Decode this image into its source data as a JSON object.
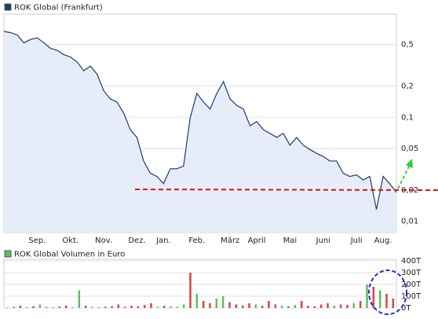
{
  "chart_data": [
    {
      "type": "line",
      "log_scale": true,
      "grid": true,
      "series": [
        {
          "name": "ROK Global (Frankfurt)",
          "color": "#1f3b6b",
          "fill": "#e6edf8",
          "values": [
            0.67,
            0.65,
            0.62,
            0.52,
            0.56,
            0.58,
            0.52,
            0.46,
            0.44,
            0.4,
            0.38,
            0.34,
            0.28,
            0.31,
            0.26,
            0.18,
            0.15,
            0.14,
            0.11,
            0.076,
            0.064,
            0.038,
            0.029,
            0.027,
            0.023,
            0.032,
            0.032,
            0.034,
            0.099,
            0.17,
            0.14,
            0.12,
            0.17,
            0.22,
            0.15,
            0.13,
            0.12,
            0.083,
            0.091,
            0.076,
            0.07,
            0.064,
            0.07,
            0.054,
            0.064,
            0.054,
            0.049,
            0.045,
            0.042,
            0.038,
            0.038,
            0.029,
            0.027,
            0.028,
            0.025,
            0.027,
            0.013,
            0.027,
            0.023,
            0.019
          ]
        }
      ],
      "categories": [
        null,
        null,
        null,
        null,
        null,
        "Sep.",
        null,
        null,
        null,
        null,
        "Okt.",
        null,
        null,
        null,
        null,
        "Nov.",
        null,
        null,
        null,
        null,
        "Dez.",
        null,
        null,
        null,
        "Jan.",
        null,
        null,
        null,
        null,
        "Feb.",
        null,
        null,
        null,
        null,
        "März",
        null,
        null,
        null,
        "April",
        null,
        null,
        null,
        null,
        "Mai",
        null,
        null,
        null,
        null,
        "Juni",
        null,
        null,
        null,
        null,
        "Juli",
        null,
        null,
        null,
        "Aug.",
        null,
        null
      ],
      "ylim": [
        0.0078,
        0.98
      ],
      "yticks": [
        {
          "value": 0.5,
          "label": "0,5"
        },
        {
          "value": 0.2,
          "label": "0,2"
        },
        {
          "value": 0.1,
          "label": "0,1"
        },
        {
          "value": 0.05,
          "label": "0,05"
        },
        {
          "value": 0.02,
          "label": "0,02"
        },
        {
          "value": 0.01,
          "label": "0,01"
        }
      ]
    },
    {
      "type": "bar",
      "grid": true,
      "series": [
        {
          "name": "ROK Global Volumen in Euro",
          "color": "#5cbf5c",
          "values": [
            5,
            10,
            20,
            8,
            15,
            30,
            10,
            5,
            12,
            20,
            8,
            150,
            20,
            10,
            5,
            10,
            15,
            30,
            10,
            20,
            15,
            25,
            40,
            10,
            20,
            15,
            10,
            30,
            300,
            120,
            60,
            40,
            80,
            100,
            50,
            30,
            20,
            40,
            30,
            20,
            60,
            30,
            20,
            15,
            25,
            60,
            20,
            15,
            30,
            40,
            20,
            30,
            25,
            40,
            60,
            200,
            180,
            150,
            120,
            80
          ],
          "bar_colors": [
            "#5cbf5c",
            "#d94444",
            "#d94444",
            "#5cbf5c",
            "#d94444",
            "#5cbf5c",
            "#5cbf5c",
            "#d94444",
            "#d94444",
            "#d94444",
            "#5cbf5c",
            "#5cbf5c",
            "#d94444",
            "#5cbf5c",
            "#d94444",
            "#d94444",
            "#d94444",
            "#d94444",
            "#d94444",
            "#d94444",
            "#d94444",
            "#d94444",
            "#d94444",
            "#5cbf5c",
            "#d94444",
            "#5cbf5c",
            "#5cbf5c",
            "#5cbf5c",
            "#d94444",
            "#5cbf5c",
            "#d94444",
            "#d94444",
            "#5cbf5c",
            "#5cbf5c",
            "#d94444",
            "#d94444",
            "#d94444",
            "#d94444",
            "#5cbf5c",
            "#d94444",
            "#d94444",
            "#d94444",
            "#5cbf5c",
            "#d94444",
            "#5cbf5c",
            "#d94444",
            "#d94444",
            "#d94444",
            "#d94444",
            "#d94444",
            "#5cbf5c",
            "#d94444",
            "#d94444",
            "#5cbf5c",
            "#d94444",
            "#5cbf5c",
            "#d94444",
            "#5cbf5c",
            "#d94444",
            "#d94444"
          ]
        }
      ],
      "ylim": [
        0,
        400
      ],
      "yticks": [
        {
          "value": 400,
          "label": "400T"
        },
        {
          "value": 300,
          "label": "300T"
        },
        {
          "value": 200,
          "label": "200T"
        },
        {
          "value": 100,
          "label": "100T"
        },
        {
          "value": 0,
          "label": "0T"
        }
      ]
    }
  ]
}
